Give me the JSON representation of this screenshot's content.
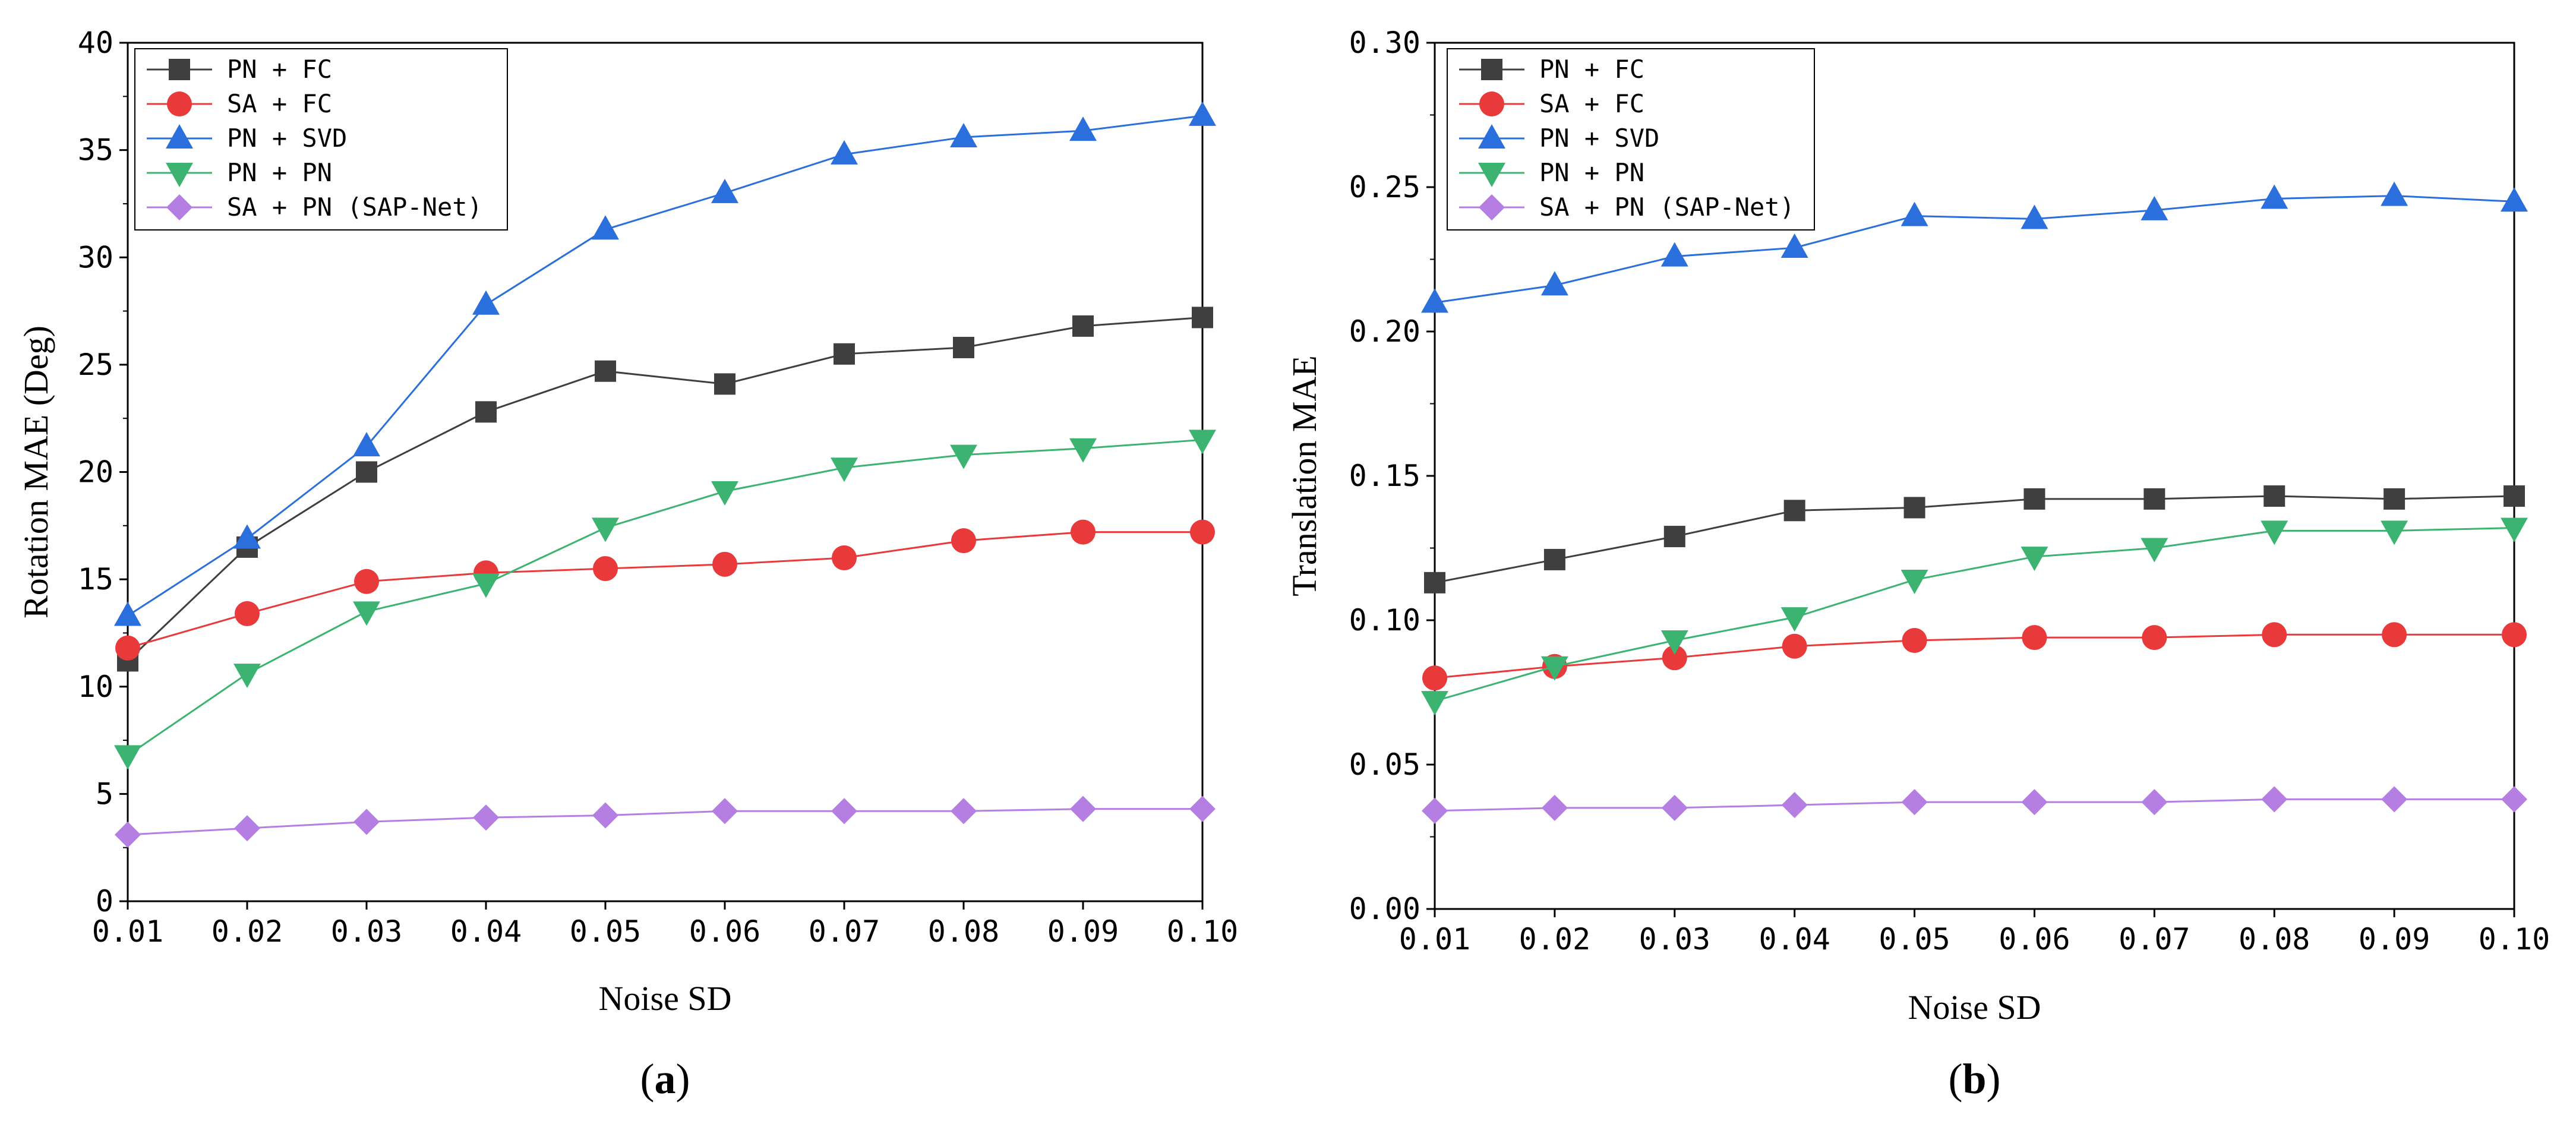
{
  "chart_data": [
    {
      "type": "line",
      "panel_label": "a",
      "xlabel": "Noise SD",
      "ylabel": "Rotation MAE (Deg)",
      "categories": [
        "0.01",
        "0.02",
        "0.03",
        "0.04",
        "0.05",
        "0.06",
        "0.07",
        "0.08",
        "0.09",
        "0.10"
      ],
      "ylim": [
        0,
        40
      ],
      "yticks": [
        "0",
        "5",
        "10",
        "15",
        "20",
        "25",
        "30",
        "35",
        "40"
      ],
      "legend_position": "top-left",
      "series": [
        {
          "name": "PN + FC",
          "color": "#3f3f3f",
          "marker": "square",
          "values": [
            11.2,
            16.5,
            20.0,
            22.8,
            24.7,
            24.1,
            25.5,
            25.8,
            26.8,
            27.2
          ]
        },
        {
          "name": "SA + FC",
          "color": "#e8393b",
          "marker": "circle",
          "values": [
            11.8,
            13.4,
            14.9,
            15.3,
            15.5,
            15.7,
            16.0,
            16.8,
            17.2,
            17.2
          ]
        },
        {
          "name": "PN + SVD",
          "color": "#2a6fdb",
          "marker": "triangle-up",
          "values": [
            13.3,
            16.9,
            21.2,
            27.8,
            31.3,
            33.0,
            34.8,
            35.6,
            35.9,
            36.6
          ]
        },
        {
          "name": "PN + PN",
          "color": "#3cb371",
          "marker": "triangle-down",
          "values": [
            6.8,
            10.6,
            13.5,
            14.8,
            17.4,
            19.1,
            20.2,
            20.8,
            21.1,
            21.5
          ]
        },
        {
          "name": "SA + PN (SAP-Net)",
          "color": "#b57ee3",
          "marker": "diamond",
          "values": [
            3.1,
            3.4,
            3.7,
            3.9,
            4.0,
            4.2,
            4.2,
            4.2,
            4.3,
            4.3
          ]
        }
      ]
    },
    {
      "type": "line",
      "panel_label": "b",
      "xlabel": "Noise SD",
      "ylabel": "Translation MAE",
      "categories": [
        "0.01",
        "0.02",
        "0.03",
        "0.04",
        "0.05",
        "0.06",
        "0.07",
        "0.08",
        "0.09",
        "0.10"
      ],
      "ylim": [
        0,
        0.3
      ],
      "yticks": [
        "0.00",
        "0.05",
        "0.10",
        "0.15",
        "0.20",
        "0.25",
        "0.30"
      ],
      "legend_position": "top-left",
      "series": [
        {
          "name": "PN + FC",
          "color": "#3f3f3f",
          "marker": "square",
          "values": [
            0.113,
            0.121,
            0.129,
            0.138,
            0.139,
            0.142,
            0.142,
            0.143,
            0.142,
            0.143
          ]
        },
        {
          "name": "SA + FC",
          "color": "#e8393b",
          "marker": "circle",
          "values": [
            0.08,
            0.084,
            0.087,
            0.091,
            0.093,
            0.094,
            0.094,
            0.095,
            0.095,
            0.095
          ]
        },
        {
          "name": "PN + SVD",
          "color": "#2a6fdb",
          "marker": "triangle-up",
          "values": [
            0.21,
            0.216,
            0.226,
            0.229,
            0.24,
            0.239,
            0.242,
            0.246,
            0.247,
            0.245
          ]
        },
        {
          "name": "PN + PN",
          "color": "#3cb371",
          "marker": "triangle-down",
          "values": [
            0.072,
            0.084,
            0.093,
            0.101,
            0.114,
            0.122,
            0.125,
            0.131,
            0.131,
            0.132
          ]
        },
        {
          "name": "SA + PN (SAP-Net)",
          "color": "#b57ee3",
          "marker": "diamond",
          "values": [
            0.034,
            0.035,
            0.035,
            0.036,
            0.037,
            0.037,
            0.037,
            0.038,
            0.038,
            0.038
          ]
        }
      ]
    }
  ]
}
